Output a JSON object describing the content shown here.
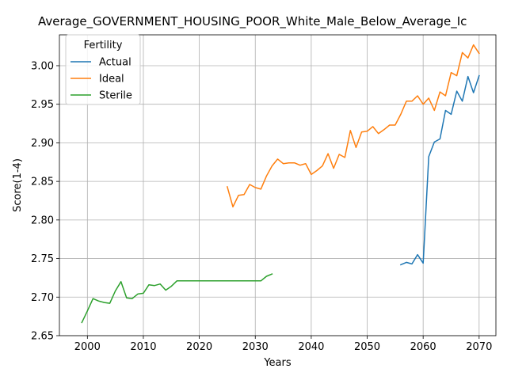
{
  "chart_data": {
    "type": "line",
    "title": "Average_GOVERNMENT_HOUSING_POOR_White_Male_Below_Average_Ic",
    "xlabel": "Years",
    "ylabel": "Score(1-4)",
    "xlim": [
      1995,
      2073
    ],
    "ylim": [
      2.65,
      3.04
    ],
    "xticks": [
      2000,
      2010,
      2020,
      2030,
      2040,
      2050,
      2060,
      2070
    ],
    "yticks": [
      2.65,
      2.7,
      2.75,
      2.8,
      2.85,
      2.9,
      2.95,
      3.0
    ],
    "ytick_labels": [
      "2.65",
      "2.70",
      "2.75",
      "2.80",
      "2.85",
      "2.90",
      "2.95",
      "3.00"
    ],
    "grid": true,
    "legend": {
      "title": "Fertility",
      "placement": "top-left"
    },
    "series": [
      {
        "name": "Actual",
        "color": "#1f77b4",
        "x": [
          2056,
          2057,
          2058,
          2059,
          2060,
          2061,
          2062,
          2063,
          2064,
          2065,
          2066,
          2067,
          2068,
          2069,
          2070
        ],
        "y": [
          2.742,
          2.745,
          2.743,
          2.755,
          2.744,
          2.882,
          2.901,
          2.905,
          2.942,
          2.937,
          2.967,
          2.954,
          2.986,
          2.965,
          2.987
        ]
      },
      {
        "name": "Ideal",
        "color": "#ff7f0e",
        "x": [
          2025,
          2026,
          2027,
          2028,
          2029,
          2030,
          2031,
          2032,
          2033,
          2034,
          2035,
          2036,
          2037,
          2038,
          2039,
          2040,
          2041,
          2042,
          2043,
          2044,
          2045,
          2046,
          2047,
          2048,
          2049,
          2050,
          2051,
          2052,
          2053,
          2054,
          2055,
          2056,
          2057,
          2058,
          2059,
          2060,
          2061,
          2062,
          2063,
          2064,
          2065,
          2066,
          2067,
          2068,
          2069,
          2070
        ],
        "y": [
          2.843,
          2.817,
          2.832,
          2.833,
          2.846,
          2.842,
          2.84,
          2.857,
          2.87,
          2.879,
          2.873,
          2.874,
          2.874,
          2.871,
          2.873,
          2.859,
          2.864,
          2.87,
          2.886,
          2.867,
          2.885,
          2.881,
          2.916,
          2.894,
          2.914,
          2.915,
          2.921,
          2.912,
          2.917,
          2.923,
          2.923,
          2.937,
          2.954,
          2.954,
          2.961,
          2.95,
          2.958,
          2.942,
          2.966,
          2.961,
          2.991,
          2.987,
          3.017,
          3.01,
          3.027,
          3.016
        ]
      },
      {
        "name": "Sterile",
        "color": "#2ca02c",
        "x": [
          1999,
          2000,
          2001,
          2002,
          2003,
          2004,
          2005,
          2006,
          2007,
          2008,
          2009,
          2010,
          2011,
          2012,
          2013,
          2014,
          2015,
          2016,
          2017,
          2018,
          2019,
          2020,
          2021,
          2022,
          2023,
          2024,
          2025,
          2026,
          2027,
          2028,
          2029,
          2030,
          2031,
          2032,
          2033
        ],
        "y": [
          2.667,
          2.682,
          2.698,
          2.695,
          2.693,
          2.692,
          2.708,
          2.72,
          2.699,
          2.698,
          2.704,
          2.705,
          2.716,
          2.715,
          2.717,
          2.709,
          2.714,
          2.721,
          2.721,
          2.721,
          2.721,
          2.721,
          2.721,
          2.721,
          2.721,
          2.721,
          2.721,
          2.721,
          2.721,
          2.721,
          2.721,
          2.721,
          2.721,
          2.727,
          2.73
        ]
      }
    ]
  }
}
